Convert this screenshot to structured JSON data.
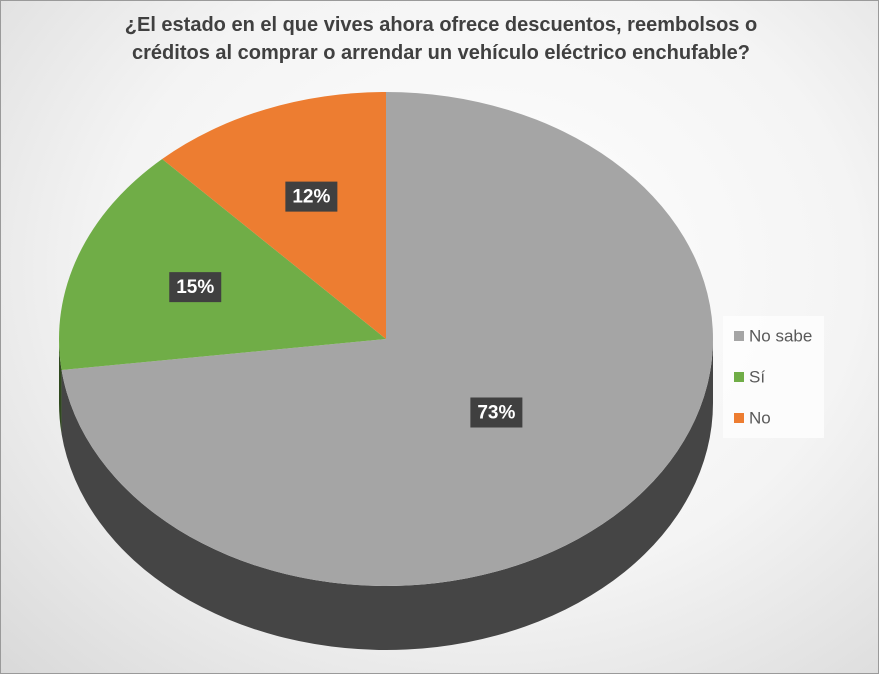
{
  "chart_data": {
    "type": "pie3d",
    "title": "¿El estado en el que vives ahora ofrece descuentos, reembolsos o créditos al comprar o arrendar un vehículo eléctrico enchufable?",
    "categories": [
      "No sabe",
      "Sí",
      "No"
    ],
    "values": [
      73,
      15,
      12
    ],
    "value_labels": [
      "73%",
      "15%",
      "12%"
    ],
    "colors": [
      "#a5a5a5",
      "#70ad47",
      "#ed7d31"
    ],
    "legend": "right"
  }
}
